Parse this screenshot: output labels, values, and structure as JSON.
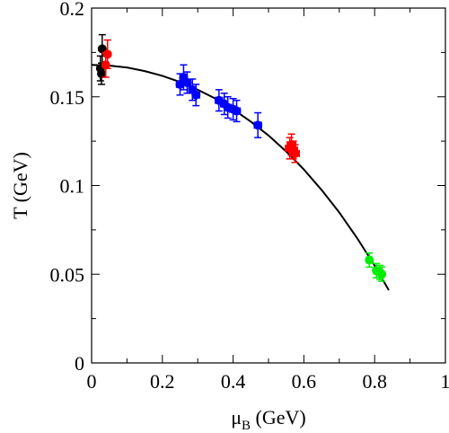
{
  "chart_data": {
    "type": "scatter",
    "xlim": [
      0,
      1
    ],
    "ylim": [
      0,
      0.2
    ],
    "xticks": [
      "0",
      "0.2",
      "0.4",
      "0.6",
      "0.8",
      "1"
    ],
    "yticks": [
      "0",
      "0.05",
      "0.1",
      "0.15",
      "0.2"
    ],
    "xticks_values": [
      0,
      0.2,
      0.4,
      0.6,
      0.8,
      1.0
    ],
    "yticks_values": [
      0,
      0.05,
      0.1,
      0.15,
      0.2
    ],
    "xlabel": {
      "symbol": "μ",
      "sub": "B",
      "unit": " (GeV)"
    },
    "ylabel": "T (GeV)",
    "grid": false,
    "series": [
      {
        "color": "#000000",
        "points": [
          {
            "x": 0.025,
            "y": 0.166,
            "xerr": 0.004,
            "yerr": 0.007
          },
          {
            "x": 0.028,
            "y": 0.163,
            "xerr": 0.004,
            "yerr": 0.006
          },
          {
            "x": 0.03,
            "y": 0.177,
            "xerr": 0.004,
            "yerr": 0.008
          }
        ]
      },
      {
        "color": "#ff0000",
        "points": [
          {
            "x": 0.04,
            "y": 0.168,
            "xerr": 0.006,
            "yerr": 0.007
          },
          {
            "x": 0.045,
            "y": 0.174,
            "xerr": 0.006,
            "yerr": 0.008
          },
          {
            "x": 0.56,
            "y": 0.121,
            "xerr": 0.012,
            "yerr": 0.006
          },
          {
            "x": 0.57,
            "y": 0.12,
            "xerr": 0.012,
            "yerr": 0.005
          },
          {
            "x": 0.575,
            "y": 0.118,
            "xerr": 0.012,
            "yerr": 0.005
          },
          {
            "x": 0.565,
            "y": 0.123,
            "xerr": 0.012,
            "yerr": 0.006
          }
        ]
      },
      {
        "color": "#0000ff",
        "points": [
          {
            "x": 0.25,
            "y": 0.157,
            "xerr": 0.01,
            "yerr": 0.006
          },
          {
            "x": 0.26,
            "y": 0.161,
            "xerr": 0.01,
            "yerr": 0.007
          },
          {
            "x": 0.27,
            "y": 0.158,
            "xerr": 0.01,
            "yerr": 0.006
          },
          {
            "x": 0.285,
            "y": 0.154,
            "xerr": 0.01,
            "yerr": 0.006
          },
          {
            "x": 0.295,
            "y": 0.151,
            "xerr": 0.01,
            "yerr": 0.006
          },
          {
            "x": 0.36,
            "y": 0.148,
            "xerr": 0.01,
            "yerr": 0.006
          },
          {
            "x": 0.375,
            "y": 0.146,
            "xerr": 0.01,
            "yerr": 0.006
          },
          {
            "x": 0.385,
            "y": 0.144,
            "xerr": 0.01,
            "yerr": 0.006
          },
          {
            "x": 0.4,
            "y": 0.143,
            "xerr": 0.01,
            "yerr": 0.006
          },
          {
            "x": 0.41,
            "y": 0.142,
            "xerr": 0.01,
            "yerr": 0.006
          },
          {
            "x": 0.47,
            "y": 0.134,
            "xerr": 0.01,
            "yerr": 0.007
          }
        ]
      },
      {
        "color": "#00ee00",
        "points": [
          {
            "x": 0.785,
            "y": 0.058,
            "xerr": 0.008,
            "yerr": 0.004
          },
          {
            "x": 0.805,
            "y": 0.052,
            "xerr": 0.008,
            "yerr": 0.004
          },
          {
            "x": 0.815,
            "y": 0.051,
            "xerr": 0.008,
            "yerr": 0.004
          },
          {
            "x": 0.82,
            "y": 0.05,
            "xerr": 0.008,
            "yerr": 0.004
          }
        ]
      }
    ],
    "curve": {
      "color": "#000000",
      "points": [
        [
          0.0,
          0.168
        ],
        [
          0.05,
          0.1676
        ],
        [
          0.1,
          0.1665
        ],
        [
          0.15,
          0.1645
        ],
        [
          0.2,
          0.1618
        ],
        [
          0.25,
          0.1583
        ],
        [
          0.3,
          0.154
        ],
        [
          0.35,
          0.149
        ],
        [
          0.4,
          0.143
        ],
        [
          0.45,
          0.136
        ],
        [
          0.5,
          0.1282
        ],
        [
          0.55,
          0.1192
        ],
        [
          0.6,
          0.109
        ],
        [
          0.65,
          0.0975
        ],
        [
          0.7,
          0.0848
        ],
        [
          0.75,
          0.0705
        ],
        [
          0.8,
          0.0548
        ],
        [
          0.84,
          0.041
        ]
      ]
    }
  }
}
